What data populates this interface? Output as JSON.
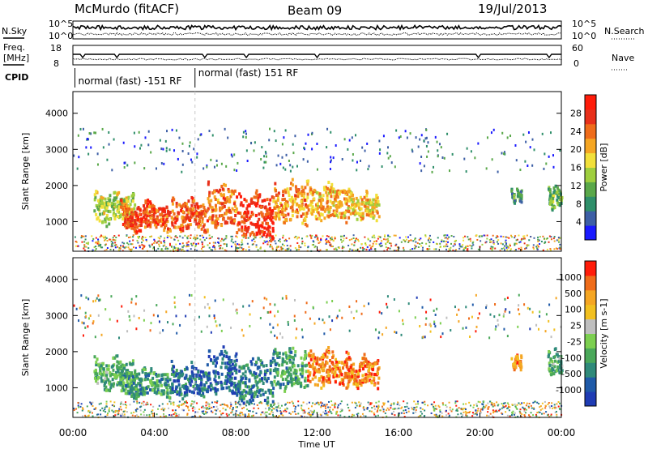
{
  "header": {
    "station": "McMurdo (fitACF)",
    "beam": "Beam 09",
    "date": "19/Jul/2013"
  },
  "status_panels": {
    "nsky_label": "N.Sky",
    "nsearch_label": "N.Search",
    "freq_label_1": "Freq.",
    "freq_label_2": "[MHz]",
    "nave_label": "Nave",
    "cpid_label": "CPID",
    "noise_ticks_left": [
      "10^5",
      "10^0"
    ],
    "noise_ticks_right": [
      "10^5",
      "10^0"
    ],
    "freq_ticks": [
      "18",
      "8"
    ],
    "nave_ticks": [
      "60",
      "0"
    ],
    "cpid_segments": [
      {
        "label": "normal (fast) -151 RF",
        "start_hour": 0.1,
        "end_hour": 6.0
      },
      {
        "label": "normal (fast) 151 RF",
        "start_hour": 6.0,
        "end_hour": 24.0
      }
    ]
  },
  "chart_data": [
    {
      "type": "heatmap",
      "panel": "power",
      "ylabel": "Slant Range [km]",
      "xlabel": "",
      "colorbar_label": "Power [dB]",
      "colorbar_ticks": [
        "4",
        "8",
        "12",
        "16",
        "20",
        "24",
        "28"
      ],
      "colorbar_colors": [
        "#1a1aff",
        "#3d5fa6",
        "#2f8f6a",
        "#5aa84a",
        "#9fcf3f",
        "#f2e03a",
        "#f5a623",
        "#ef6c1a",
        "#e8301a",
        "#ff1c0a"
      ],
      "xlim": [
        0,
        24
      ],
      "ylim": [
        180,
        4600
      ],
      "yticks": [
        "1000",
        "2000",
        "3000",
        "4000"
      ],
      "xticks": [
        "00:00",
        "04:00",
        "08:00",
        "12:00",
        "16:00",
        "20:00",
        "00:00"
      ],
      "blobs": [
        {
          "t0": 1.0,
          "t1": 3.0,
          "r0": 900,
          "r1": 2000,
          "level": 0.45
        },
        {
          "t0": 2.3,
          "t1": 4.8,
          "r0": 700,
          "r1": 1700,
          "level": 0.85
        },
        {
          "t0": 4.8,
          "t1": 6.6,
          "r0": 700,
          "r1": 1800,
          "level": 0.82
        },
        {
          "t0": 6.6,
          "t1": 8.0,
          "r0": 800,
          "r1": 2200,
          "level": 0.78
        },
        {
          "t0": 8.0,
          "t1": 9.8,
          "r0": 500,
          "r1": 2000,
          "level": 0.9
        },
        {
          "t0": 9.8,
          "t1": 11.5,
          "r0": 900,
          "r1": 2300,
          "level": 0.7
        },
        {
          "t0": 11.5,
          "t1": 13.5,
          "r0": 1000,
          "r1": 2200,
          "level": 0.65
        },
        {
          "t0": 13.5,
          "t1": 15.0,
          "r0": 1000,
          "r1": 2000,
          "level": 0.6
        },
        {
          "t0": 21.5,
          "t1": 22.0,
          "r0": 1500,
          "r1": 2100,
          "level": 0.25
        },
        {
          "t0": 23.3,
          "t1": 24.0,
          "r0": 1300,
          "r1": 2200,
          "level": 0.35
        }
      ]
    },
    {
      "type": "heatmap",
      "panel": "velocity",
      "ylabel": "Slant Range [km]",
      "xlabel": "Time UT",
      "colorbar_label": "Velocity [m s-1]",
      "colorbar_ticks": [
        "1000",
        "500",
        "100",
        "25",
        "-25",
        "-100",
        "-500",
        "-1000"
      ],
      "colorbar_colors": [
        "#1f3cb4",
        "#1f5aa8",
        "#2f8a7a",
        "#4aa85a",
        "#7ccf50",
        "#bfbfbf",
        "#f2c020",
        "#f5a623",
        "#ef6c1a",
        "#ff1c0a"
      ],
      "xlim": [
        0,
        24
      ],
      "ylim": [
        180,
        4600
      ],
      "yticks": [
        "1000",
        "2000",
        "3000",
        "4000"
      ],
      "xticks": [
        "00:00",
        "04:00",
        "08:00",
        "12:00",
        "16:00",
        "20:00",
        "00:00"
      ],
      "blobs": [
        {
          "t0": 1.0,
          "t1": 3.0,
          "r0": 900,
          "r1": 2000,
          "level": 0.35
        },
        {
          "t0": 2.3,
          "t1": 4.8,
          "r0": 700,
          "r1": 1700,
          "level": 0.3
        },
        {
          "t0": 4.8,
          "t1": 6.6,
          "r0": 700,
          "r1": 1800,
          "level": 0.15
        },
        {
          "t0": 6.6,
          "t1": 8.0,
          "r0": 800,
          "r1": 2200,
          "level": 0.1
        },
        {
          "t0": 8.0,
          "t1": 9.8,
          "r0": 500,
          "r1": 2000,
          "level": 0.2
        },
        {
          "t0": 9.8,
          "t1": 11.5,
          "r0": 900,
          "r1": 2300,
          "level": 0.3
        },
        {
          "t0": 11.5,
          "t1": 13.5,
          "r0": 1000,
          "r1": 2200,
          "level": 0.85
        },
        {
          "t0": 13.5,
          "t1": 15.0,
          "r0": 1000,
          "r1": 2000,
          "level": 0.85
        },
        {
          "t0": 21.5,
          "t1": 22.0,
          "r0": 1500,
          "r1": 2100,
          "level": 0.82
        },
        {
          "t0": 23.3,
          "t1": 24.0,
          "r0": 1300,
          "r1": 2200,
          "level": 0.35
        }
      ]
    }
  ]
}
